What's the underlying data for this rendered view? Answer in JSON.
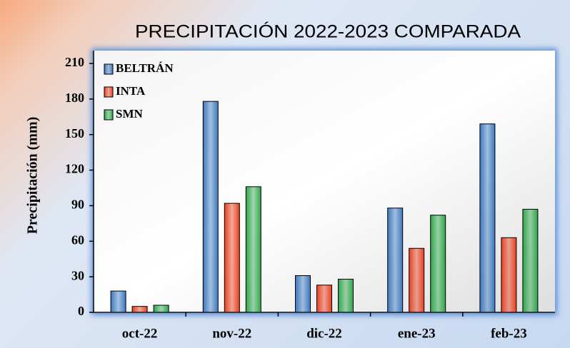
{
  "chart_data": {
    "type": "bar",
    "title": "PRECIPITACIÓN 2022-2023 COMPARADA",
    "y_label": "Precipitación (mm)",
    "categories": [
      "oct-22",
      "nov-22",
      "dic-22",
      "ene-23",
      "feb-23"
    ],
    "series": [
      {
        "name": "BELTRÁN",
        "color": "#3b78c0",
        "values": [
          18,
          178,
          31,
          88,
          159
        ]
      },
      {
        "name": "INTA",
        "color": "#e8401f",
        "values": [
          5,
          92,
          23,
          54,
          63
        ]
      },
      {
        "name": "SMN",
        "color": "#2ea64a",
        "values": [
          6,
          106,
          28,
          82,
          87
        ]
      }
    ],
    "ylim": [
      0,
      210
    ],
    "yticks": [
      0,
      30,
      60,
      90,
      120,
      150,
      180,
      210
    ],
    "grid": false,
    "legend": "upper left"
  }
}
